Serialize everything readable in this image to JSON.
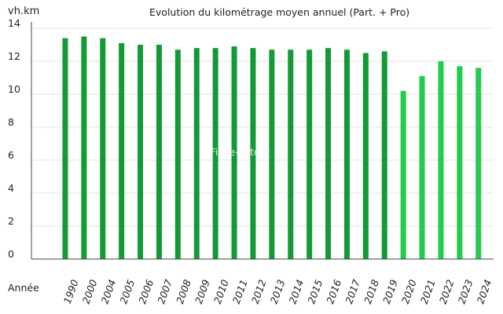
{
  "chart_data": {
    "type": "bar",
    "title": "Evolution du kilométrage moyen annuel (Part. + Pro)",
    "ylabel": "vh.km",
    "xlabel": "Année",
    "ylim": [
      0,
      14
    ],
    "y_ticks": [
      0,
      2,
      4,
      6,
      8,
      10,
      12,
      14
    ],
    "grid": true,
    "categories": [
      "1990",
      "2000",
      "2004",
      "2005",
      "2006",
      "2007",
      "2008",
      "2009",
      "2010",
      "2011",
      "2012",
      "2013",
      "2014",
      "2015",
      "2016",
      "2017",
      "2018",
      "2019",
      "2020",
      "2021",
      "2022",
      "2023",
      "2024"
    ],
    "values": [
      13.4,
      13.5,
      13.4,
      13.1,
      13.0,
      13.0,
      12.7,
      12.8,
      12.8,
      12.9,
      12.8,
      12.7,
      12.7,
      12.7,
      12.8,
      12.7,
      12.5,
      12.6,
      10.2,
      11.1,
      12.0,
      11.7,
      11.6
    ],
    "bar_colors": [
      "#139a35",
      "#139a35",
      "#139a35",
      "#139a35",
      "#139a35",
      "#139a35",
      "#139a35",
      "#139a35",
      "#139a35",
      "#139a35",
      "#139a35",
      "#139a35",
      "#139a35",
      "#139a35",
      "#139a35",
      "#139a35",
      "#139a35",
      "#139a35",
      "#22cc4c",
      "#22cc4c",
      "#22cc4c",
      "#22cc4c",
      "#22cc4c"
    ],
    "watermark": "Fiche-auto.fr"
  }
}
